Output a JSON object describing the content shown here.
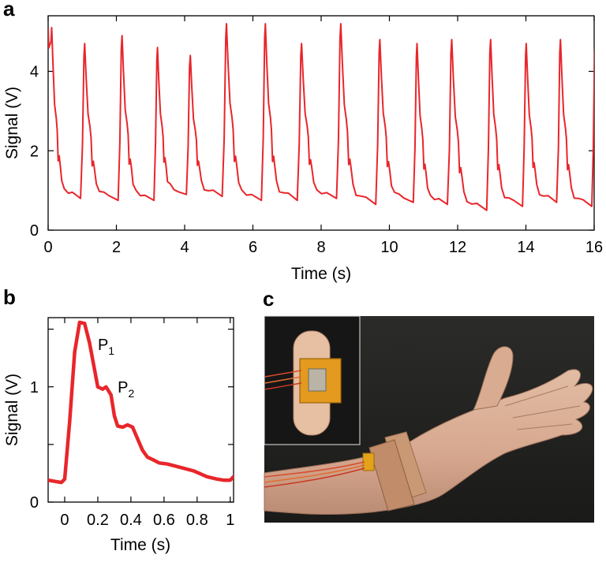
{
  "panel_letters": [
    "a",
    "b",
    "c"
  ],
  "trace_color": "#e8262b",
  "chart_data": [
    {
      "panel": "a",
      "type": "line",
      "xlabel": "Time (s)",
      "ylabel": "Signal (V)",
      "xlim": [
        0,
        16
      ],
      "ylim": [
        0,
        5.4
      ],
      "xticks": [
        0,
        2,
        4,
        6,
        8,
        10,
        12,
        14,
        16
      ],
      "yticks": [
        0,
        2,
        4
      ],
      "beat_onsets_s": [
        0.0,
        0.95,
        2.05,
        3.1,
        4.05,
        5.1,
        6.25,
        7.3,
        8.45,
        9.6,
        10.7,
        11.7,
        12.85,
        13.9,
        14.9,
        15.93
      ],
      "peak_values_v": [
        5.1,
        4.7,
        4.9,
        4.6,
        4.4,
        5.2,
        5.2,
        4.7,
        5.2,
        4.8,
        4.7,
        4.8,
        4.8,
        4.7,
        4.8,
        4.7
      ],
      "trough_values_v": [
        0.8,
        0.75,
        0.75,
        0.9,
        0.85,
        0.75,
        0.75,
        0.8,
        0.65,
        0.7,
        0.65,
        0.5,
        0.6,
        0.7,
        0.6,
        0.65
      ]
    },
    {
      "panel": "b",
      "type": "line",
      "xlabel": "Time (s)",
      "ylabel": "Signal (V)",
      "xlim": [
        -0.1,
        1.02
      ],
      "ylim": [
        0,
        1.6
      ],
      "xticks": [
        0,
        0.2,
        0.4,
        0.6,
        0.8,
        1
      ],
      "xtick_labels": [
        "0",
        "0.2",
        "0.4",
        "0.6",
        "0.8",
        "1"
      ],
      "yticks": [
        0,
        0.5,
        1,
        1.5
      ],
      "ytick_labels": [
        "0",
        "",
        "1",
        ""
      ],
      "x": [
        -0.1,
        -0.06,
        -0.02,
        0.0,
        0.03,
        0.06,
        0.09,
        0.12,
        0.15,
        0.18,
        0.2,
        0.23,
        0.25,
        0.28,
        0.3,
        0.32,
        0.35,
        0.38,
        0.41,
        0.44,
        0.47,
        0.5,
        0.53,
        0.57,
        0.62,
        0.7,
        0.78,
        0.86,
        0.92,
        0.96,
        1.0,
        1.02
      ],
      "y": [
        0.19,
        0.18,
        0.17,
        0.2,
        0.7,
        1.3,
        1.56,
        1.55,
        1.38,
        1.15,
        1.0,
        0.98,
        1.0,
        0.93,
        0.75,
        0.66,
        0.65,
        0.67,
        0.65,
        0.55,
        0.45,
        0.39,
        0.37,
        0.34,
        0.33,
        0.3,
        0.27,
        0.22,
        0.2,
        0.19,
        0.19,
        0.22
      ],
      "annotations": [
        {
          "base": "P",
          "sub": "1",
          "x": 0.2,
          "y": 1.32
        },
        {
          "base": "P",
          "sub": "2",
          "x": 0.32,
          "y": 0.95
        }
      ]
    }
  ],
  "photo": {
    "panel": "c"
  }
}
